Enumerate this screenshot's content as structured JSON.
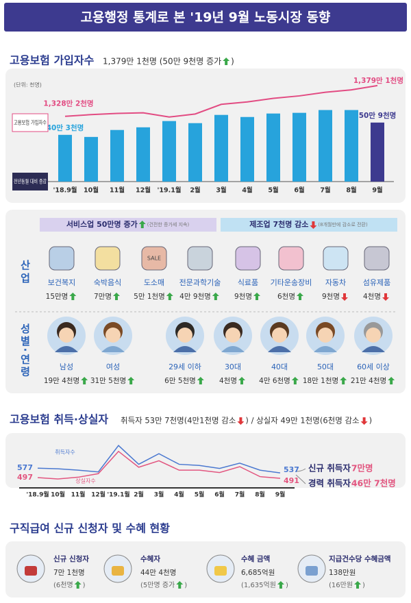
{
  "header": {
    "title": "고용행정 통계로 본 '19년 9월 노동시장 동향"
  },
  "subscribers": {
    "title": "고용보험 가입자수",
    "summary": [
      "1,379만 1천명 (50만 9천명 증가",
      ")"
    ],
    "arrow": "up"
  },
  "flows": {
    "title": "고용보험 취득·상실자",
    "summary": [
      {
        "text": "취득자 53만 7천명(4만1천명 감소",
        "arrow": "down"
      },
      {
        "text": ") / 상실자 49만 1천명(6천명 감소",
        "arrow": "down"
      },
      {
        "text": ")"
      }
    ],
    "notes": [
      {
        "label": "신규 취득자",
        "value": "7만명"
      },
      {
        "label": "경력 취득자",
        "value": "46만 7천명"
      }
    ]
  },
  "industry": {
    "label": "산업",
    "icon_text": "SALE",
    "service": {
      "title": "서비스업 50만명 증가",
      "arrow": "up",
      "note": "(건전한 증가세 지속)"
    },
    "manufacturing": {
      "title": "제조업 7천명 감소",
      "arrow": "down",
      "note": "(8개월만에 감소로 전환)"
    },
    "items": [
      {
        "name": "보건복지",
        "value": "15만명",
        "arrow": "up"
      },
      {
        "name": "숙박음식",
        "value": "7만명",
        "arrow": "up"
      },
      {
        "name": "도소매",
        "value": "5만 1천명",
        "arrow": "up"
      },
      {
        "name": "전문과학기술",
        "value": "4만 9천명",
        "arrow": "up"
      },
      {
        "name": "식료품",
        "value": "9천명",
        "arrow": "up"
      },
      {
        "name": "기타운송장비",
        "value": "6천명",
        "arrow": "up"
      },
      {
        "name": "자동차",
        "value": "9천명",
        "arrow": "down"
      },
      {
        "name": "섬유제품",
        "value": "4천명",
        "arrow": "down"
      }
    ]
  },
  "demography": {
    "label": "성별·연령",
    "items": [
      {
        "name": "남성",
        "value": "19만 4천명",
        "arrow": "up"
      },
      {
        "name": "여성",
        "value": "31만 5천명",
        "arrow": "up"
      },
      {
        "name": "29세 이하",
        "value": "6만 5천명",
        "arrow": "up"
      },
      {
        "name": "30대",
        "value": "4천명",
        "arrow": "up"
      },
      {
        "name": "40대",
        "value": "4만 6천명",
        "arrow": "up"
      },
      {
        "name": "50대",
        "value": "18만 1천명",
        "arrow": "up"
      },
      {
        "name": "60세 이상",
        "value": "21만 4천명",
        "arrow": "up"
      }
    ]
  },
  "benefits": {
    "title": "구직급여 신규 신청자 및 수혜 현황",
    "items": [
      {
        "name": "신규 신청자",
        "value": "7만 1천명",
        "change": [
          "(6천명",
          ")"
        ],
        "arrow": "up"
      },
      {
        "name": "수혜자",
        "value": "44만 4천명",
        "change": [
          "(5만명 증가",
          ")"
        ],
        "arrow": "up"
      },
      {
        "name": "수혜 금액",
        "value": "6,685억원",
        "change": [
          "(1,635억원",
          ")"
        ],
        "arrow": "up"
      },
      {
        "name": "지급건수당 수혜금액",
        "value": "138만원",
        "change": [
          "(16만원",
          ")"
        ],
        "arrow": "up"
      }
    ]
  },
  "chart_data": [
    {
      "type": "bar",
      "unit": "(단위: 천명)",
      "categories": [
        "'18.9월",
        "10월",
        "11월",
        "12월",
        "'19.1월",
        "2월",
        "3월",
        "4월",
        "5월",
        "6월",
        "7월",
        "8월",
        "9월"
      ],
      "ylim": [
        0,
        650
      ],
      "y2lim": [
        12200,
        13960
      ],
      "series": [
        {
          "name": "고용보험 가입자수",
          "type": "line",
          "axis": "y2",
          "color": "#e24b82",
          "values": [
            13282,
            13310,
            13330,
            13340,
            13270,
            13320,
            13480,
            13520,
            13580,
            13620,
            13680,
            13720,
            13791
          ],
          "value_labels": [
            "1,328만 2천명",
            null,
            null,
            null,
            null,
            null,
            null,
            null,
            null,
            null,
            null,
            null,
            "1,379만 1천명"
          ]
        },
        {
          "name": "전년동월 대비 증감",
          "type": "bar",
          "colors": [
            "#27a3dc",
            "#27a3dc",
            "#27a3dc",
            "#27a3dc",
            "#27a3dc",
            "#27a3dc",
            "#27a3dc",
            "#27a3dc",
            "#27a3dc",
            "#27a3dc",
            "#27a3dc",
            "#27a3dc",
            "#3d3a8f"
          ],
          "values": [
            403,
            385,
            445,
            468,
            522,
            504,
            575,
            557,
            587,
            593,
            617,
            617,
            509
          ],
          "value_labels": [
            "40만 3천명",
            null,
            null,
            null,
            null,
            null,
            null,
            null,
            null,
            null,
            null,
            null,
            "50만 9천명"
          ]
        }
      ]
    },
    {
      "type": "line",
      "categories": [
        "'18.9월",
        "10월",
        "11월",
        "12월",
        "'19.1월",
        "2월",
        "3월",
        "4월",
        "5월",
        "6월",
        "7월",
        "8월",
        "9월"
      ],
      "ylim": [
        450,
        800
      ],
      "series": [
        {
          "name": "취득자수",
          "color": "#4a78d0",
          "values": [
            577,
            572,
            560,
            545,
            770,
            610,
            700,
            610,
            600,
            575,
            620,
            560,
            537
          ]
        },
        {
          "name": "상실자수",
          "color": "#e2557f",
          "values": [
            497,
            485,
            500,
            530,
            720,
            585,
            640,
            560,
            560,
            540,
            590,
            505,
            491
          ]
        }
      ]
    }
  ]
}
